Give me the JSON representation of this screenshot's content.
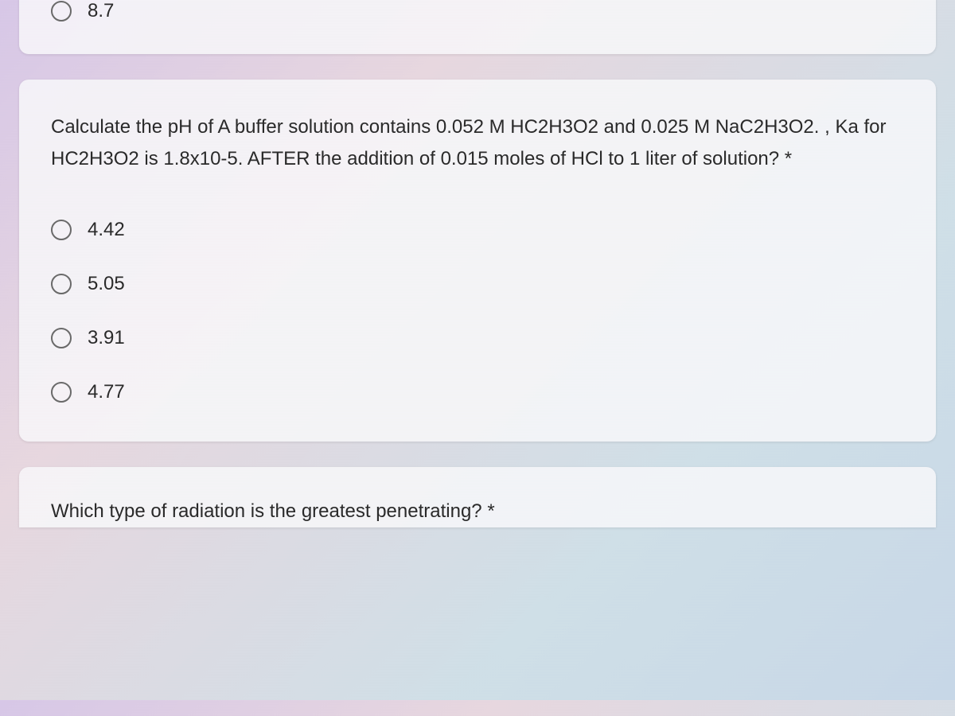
{
  "card_top": {
    "option": {
      "label": "8.7"
    }
  },
  "card_main": {
    "question_text": "Calculate the pH of A buffer solution contains 0.052 M HC2H3O2 and 0.025 M NaC2H3O2. , Ka for HC2H3O2 is 1.8x10-5. AFTER the addition of 0.015 moles of HCl to 1 liter of solution? *",
    "options": [
      {
        "label": "4.42"
      },
      {
        "label": "5.05"
      },
      {
        "label": "3.91"
      },
      {
        "label": "4.77"
      }
    ]
  },
  "card_bottom": {
    "question_text": "Which type of radiation is the greatest penetrating? *"
  },
  "colors": {
    "background_gradient_start": "#d8c8e8",
    "background_gradient_end": "#c8d8e8",
    "card_background": "#f8f8fa",
    "text_color": "#2a2a2a",
    "radio_border": "#6a6a6a"
  },
  "typography": {
    "font_family": "Arial",
    "question_fontsize": 24,
    "option_fontsize": 24
  }
}
